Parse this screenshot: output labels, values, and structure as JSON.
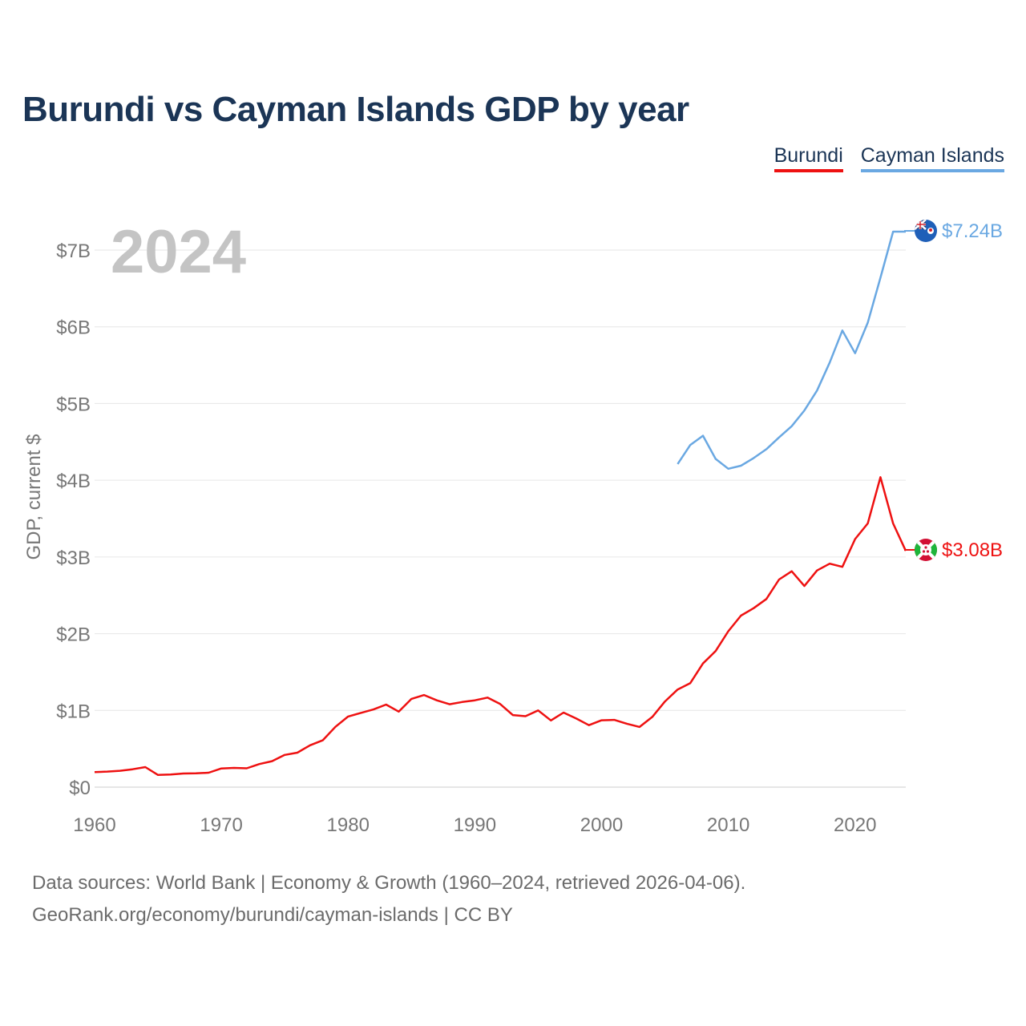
{
  "title": "Burundi vs Cayman Islands GDP by year",
  "legend": [
    {
      "label": "Burundi",
      "color": "#ee1111"
    },
    {
      "label": "Cayman Islands",
      "color": "#6aa8e2"
    }
  ],
  "year_label": "2024",
  "end_labels": {
    "cayman": "$7.24B",
    "burundi": "$3.08B"
  },
  "footer": {
    "line1": "Data sources: World Bank | Economy & Growth (1960–2024, retrieved 2026-04-06).",
    "line2": "GeoRank.org/economy/burundi/cayman-islands | CC BY"
  },
  "chart_data": {
    "type": "line",
    "title": "Burundi vs Cayman Islands GDP by year",
    "xlabel": "",
    "ylabel": "GDP, current $",
    "xlim": [
      1960,
      2024
    ],
    "ylim": [
      0,
      7000000000
    ],
    "x_ticks": [
      1960,
      1970,
      1980,
      1990,
      2000,
      2010,
      2020
    ],
    "x_tick_labels": [
      "1960",
      "1970",
      "1980",
      "1990",
      "2000",
      "2010",
      "2020"
    ],
    "y_ticks": [
      0,
      1000000000,
      2000000000,
      3000000000,
      4000000000,
      5000000000,
      6000000000,
      7000000000
    ],
    "y_tick_labels": [
      "$0",
      "$1B",
      "$2B",
      "$3B",
      "$4B",
      "$5B",
      "$6B",
      "$7B"
    ],
    "grid": true,
    "legend_position": "top-right",
    "series": [
      {
        "name": "Burundi",
        "color": "#ee1111",
        "x": [
          1960,
          1961,
          1962,
          1963,
          1964,
          1965,
          1966,
          1967,
          1968,
          1969,
          1970,
          1971,
          1972,
          1973,
          1974,
          1975,
          1976,
          1977,
          1978,
          1979,
          1980,
          1981,
          1982,
          1983,
          1984,
          1985,
          1986,
          1987,
          1988,
          1989,
          1990,
          1991,
          1992,
          1993,
          1994,
          1995,
          1996,
          1997,
          1998,
          1999,
          2000,
          2001,
          2002,
          2003,
          2004,
          2005,
          2006,
          2007,
          2008,
          2009,
          2010,
          2011,
          2012,
          2013,
          2014,
          2015,
          2016,
          2017,
          2018,
          2019,
          2020,
          2021,
          2022,
          2023,
          2024
        ],
        "values": [
          0.196,
          0.203,
          0.213,
          0.233,
          0.261,
          0.159,
          0.165,
          0.178,
          0.18,
          0.188,
          0.243,
          0.251,
          0.246,
          0.301,
          0.338,
          0.42,
          0.449,
          0.545,
          0.61,
          0.786,
          0.92,
          0.967,
          1.012,
          1.076,
          0.984,
          1.15,
          1.2,
          1.131,
          1.08,
          1.11,
          1.132,
          1.167,
          1.083,
          0.939,
          0.925,
          1.0,
          0.869,
          0.972,
          0.894,
          0.808,
          0.871,
          0.877,
          0.826,
          0.785,
          0.915,
          1.117,
          1.273,
          1.356,
          1.612,
          1.774,
          2.032,
          2.236,
          2.333,
          2.452,
          2.706,
          2.814,
          2.621,
          2.824,
          2.913,
          2.871,
          3.234,
          3.437,
          4.04,
          3.437,
          3.08
        ]
      },
      {
        "name": "Cayman Islands",
        "color": "#6aa8e2",
        "x": [
          2006,
          2007,
          2008,
          2009,
          2010,
          2011,
          2012,
          2013,
          2014,
          2015,
          2016,
          2017,
          2018,
          2019,
          2020,
          2021,
          2022,
          2023,
          2024
        ],
        "values": [
          4.211,
          4.46,
          4.58,
          4.278,
          4.15,
          4.19,
          4.29,
          4.405,
          4.558,
          4.705,
          4.909,
          5.17,
          5.534,
          5.952,
          5.655,
          6.055,
          6.64,
          7.24,
          7.24
        ]
      }
    ],
    "value_unit": "billion USD",
    "end_labels": [
      "$7.24B",
      "$3.08B"
    ],
    "annotations": [
      "2024"
    ]
  }
}
